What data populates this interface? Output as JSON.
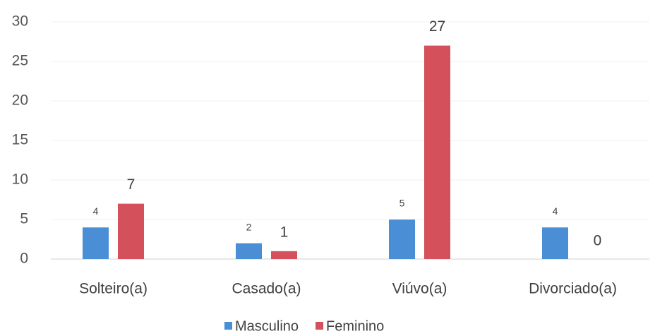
{
  "chart_data": {
    "type": "bar",
    "categories": [
      "Solteiro(a)",
      "Casado(a)",
      "Viúvo(a)",
      "Divorciado(a)"
    ],
    "series": [
      {
        "name": "Masculino",
        "color": "#4a8fd6",
        "values": [
          4,
          2,
          5,
          4
        ]
      },
      {
        "name": "Feminino",
        "color": "#d4505a",
        "values": [
          7,
          1,
          27,
          0
        ]
      }
    ],
    "ylim": [
      0,
      30
    ],
    "yticks": [
      0,
      5,
      10,
      15,
      20,
      25,
      30
    ],
    "grid": true,
    "legend": "bottom"
  }
}
